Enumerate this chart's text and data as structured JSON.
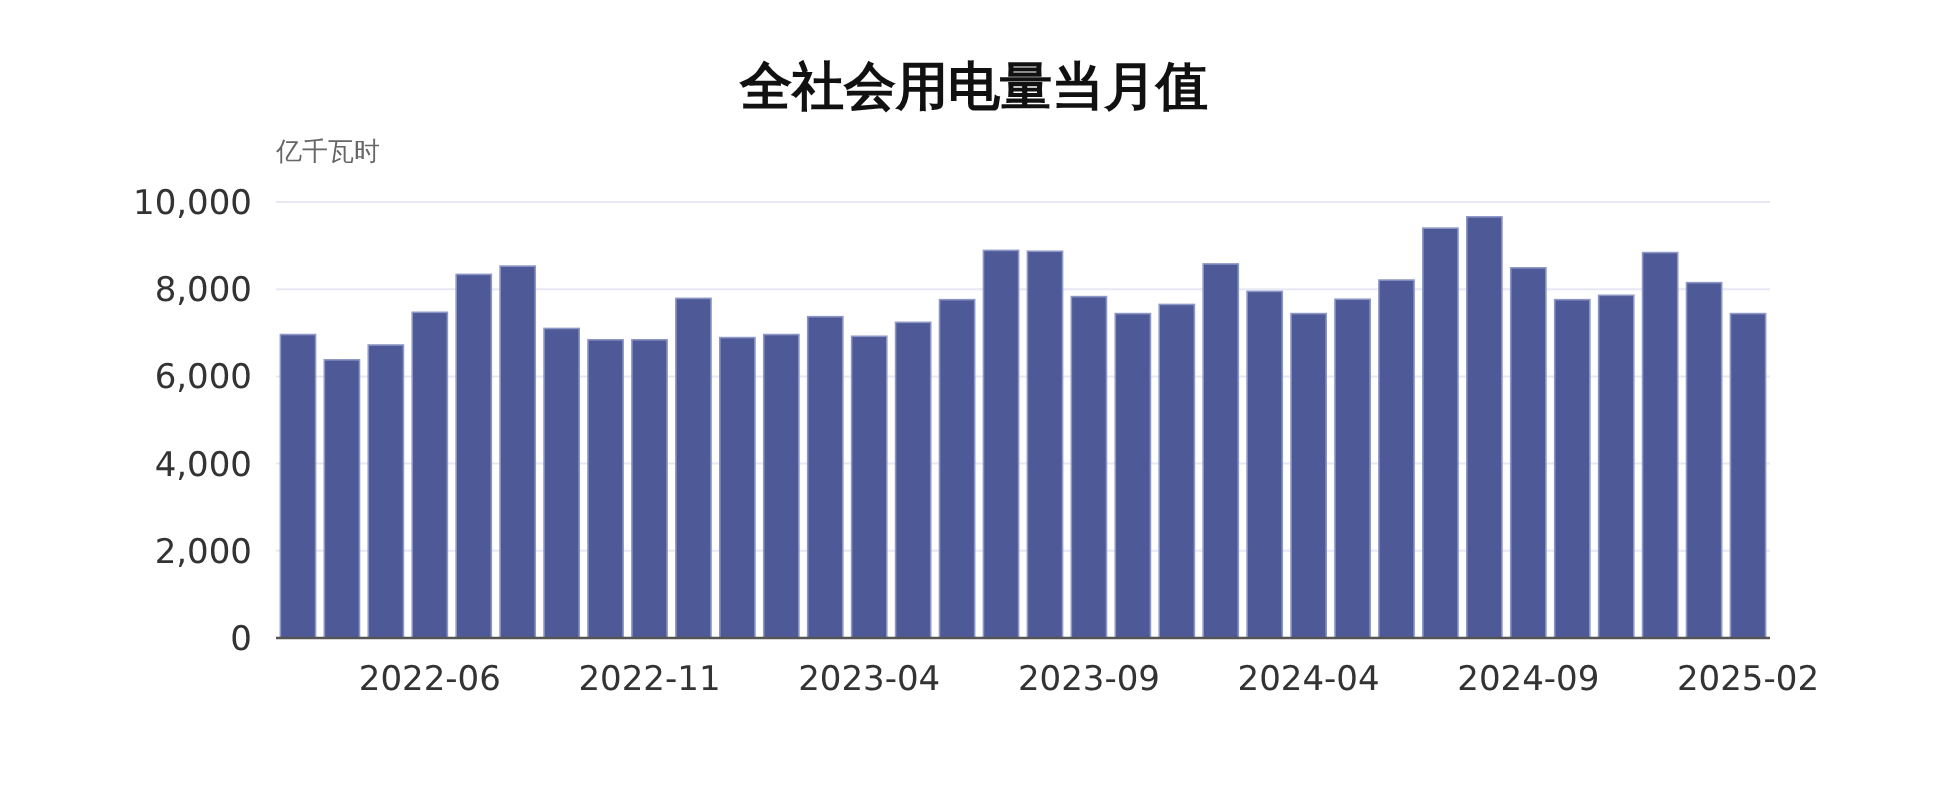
{
  "chart_data": {
    "type": "bar",
    "title": "全社会用电量当月值",
    "ylabel": "亿千瓦时",
    "categories": [
      null,
      null,
      null,
      "2022-06",
      null,
      null,
      null,
      null,
      "2022-11",
      null,
      null,
      null,
      null,
      "2023-04",
      null,
      null,
      null,
      null,
      "2023-09",
      null,
      null,
      null,
      null,
      "2024-04",
      null,
      null,
      null,
      null,
      "2024-09",
      null,
      null,
      null,
      null,
      "2025-02"
    ],
    "values": [
      6960,
      6380,
      6720,
      7470,
      8340,
      8530,
      7100,
      6840,
      6840,
      7790,
      6890,
      6960,
      7370,
      6920,
      7240,
      7760,
      8890,
      8870,
      7830,
      7440,
      7650,
      8580,
      7950,
      7440,
      7770,
      8210,
      9400,
      9660,
      8490,
      7760,
      7860,
      8840,
      8150,
      7440
    ],
    "color": "#4e5a98",
    "ylim": [
      0,
      10000
    ],
    "yticks": [
      0,
      {
        "value": 2000,
        "label": "2,000"
      },
      {
        "value": 4000,
        "label": "4,000"
      },
      {
        "value": 6000,
        "label": "6,000"
      },
      {
        "value": 8000,
        "label": "8,000"
      },
      {
        "value": 10000,
        "label": "10,000"
      }
    ],
    "grid": "y"
  }
}
